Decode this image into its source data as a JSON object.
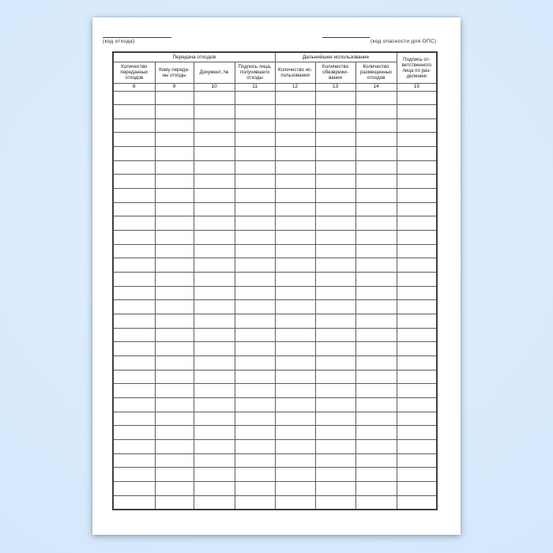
{
  "page": {
    "background_color": "#d5e8fb",
    "paper_color": "#ffffff",
    "border_color": "#5e5e5e"
  },
  "form": {
    "caption_left": "(код  отхода)",
    "caption_right": "(код  опасности  для  ОПС)",
    "table": {
      "group_headers": [
        {
          "label": "Передача отходов",
          "colspan": 4
        },
        {
          "label": "Дальнейшее использование",
          "colspan": 3
        }
      ],
      "column_headers": [
        "Количество\nпереданных\nотходов",
        "Кому переда-\nны отходы",
        "Документ, №",
        "Подпись лица,\nполучившего\nотходы",
        "Количество ис-\nпользования",
        "Количество\nобезврежи-\nвания",
        "Количество\nразмещенных\nотходов"
      ],
      "last_column_header": "Подпись от-\nветственного\nлица по раз-\nделению",
      "column_numbers": [
        "8",
        "9",
        "10",
        "11",
        "12",
        "13",
        "14",
        "15"
      ],
      "column_count": 8,
      "empty_row_count": 30
    }
  }
}
